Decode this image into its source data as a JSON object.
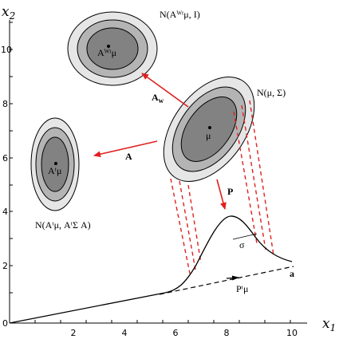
{
  "axes": {
    "xlabel_main": "x",
    "xlabel_sub": "1",
    "ylabel_main": "x",
    "ylabel_sub": "2",
    "x_ticks": [
      "2",
      "4",
      "6",
      "8",
      "10"
    ],
    "y_ticks": [
      "0",
      "2",
      "4",
      "6",
      "8",
      "10"
    ]
  },
  "labels": {
    "dist_top": "N(Aᵂᵗμ, I)",
    "dist_top_center": "Aᵂᵗμ",
    "dist_mid": "N(μ, Σ)",
    "dist_mid_center": "μ",
    "dist_left": "N(Aᵗμ, AᵗΣ A)",
    "dist_left_center": "Aᵗμ",
    "arrow_aw": "A",
    "arrow_aw_sub": "w",
    "arrow_a": "A",
    "arrow_p": "P",
    "sigma": "σ",
    "proj_mean": "Pᵗμ",
    "line_a": "a"
  },
  "colors": {
    "outer_ring": "#e6e6e6",
    "mid_ring": "#b4b4b4",
    "inner_fill": "#828282",
    "arrow": "#e02020",
    "dashes": "#e02020"
  },
  "chart_data": {
    "type": "diagram",
    "xlim": [
      0,
      11
    ],
    "ylim": [
      0,
      11
    ],
    "grid": false
  }
}
